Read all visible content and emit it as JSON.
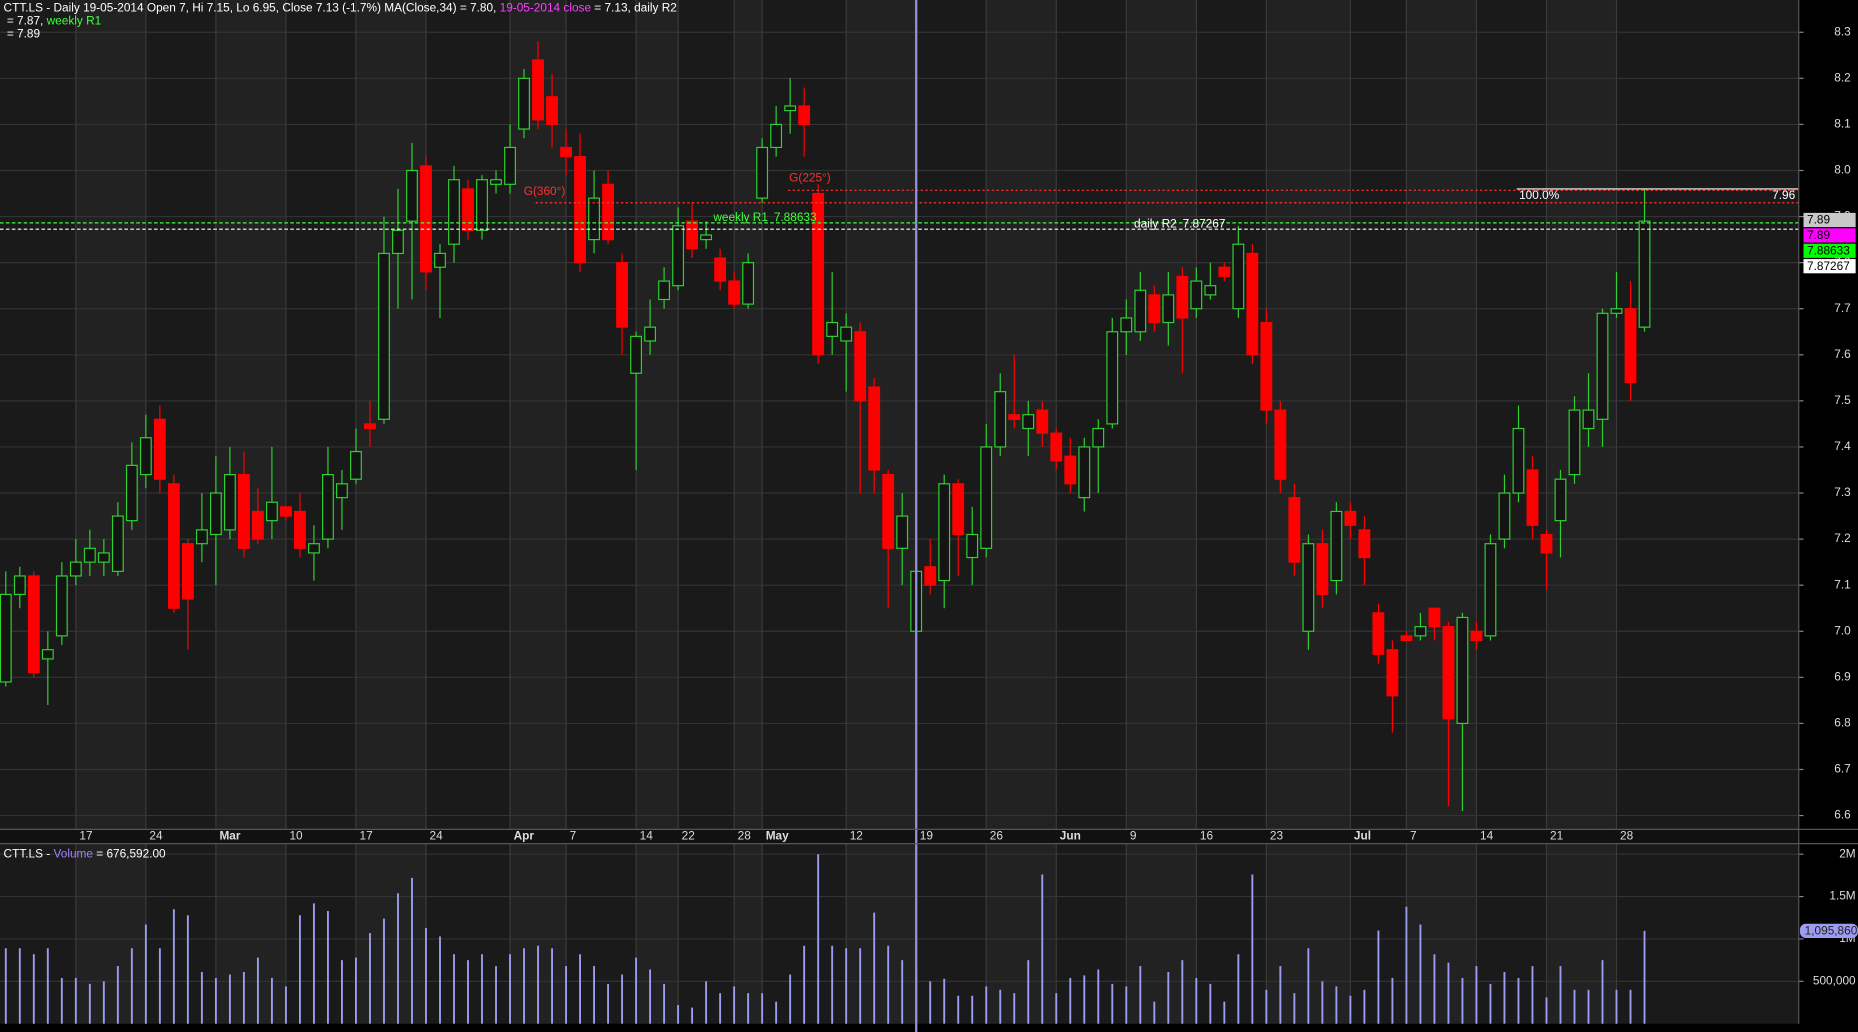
{
  "chart_data": {
    "type": "candlestick",
    "header": [
      [
        {
          "text": "CTT.LS - Daily 19-05-2014 Open 7, Hi 7.15, Lo 6.95, Close 7.13 (-1.7%) MA(Close,34) = 7.80, ",
          "color": "#ffffff"
        },
        {
          "text": "19-05-2014 close",
          "color": "#ff40ff"
        },
        {
          "text": " = 7.13, daily R2",
          "color": "#ffffff"
        }
      ],
      [
        {
          "text": " = 7.87, ",
          "color": "#ffffff"
        },
        {
          "text": "weekly R1",
          "color": "#40ff40"
        }
      ],
      [
        {
          "text": " = 7.89",
          "color": "#ffffff"
        }
      ]
    ],
    "categories": [
      null,
      null,
      null,
      null,
      null,
      "17",
      null,
      null,
      null,
      null,
      "24",
      null,
      null,
      null,
      null,
      "Mar",
      null,
      null,
      null,
      null,
      "10",
      null,
      null,
      null,
      null,
      "17",
      null,
      null,
      null,
      null,
      "24",
      null,
      null,
      null,
      null,
      null,
      "Apr",
      null,
      null,
      null,
      "7",
      null,
      null,
      null,
      null,
      "14",
      null,
      null,
      "22",
      null,
      null,
      null,
      "28",
      null,
      "May",
      null,
      null,
      null,
      null,
      null,
      "12",
      null,
      null,
      null,
      null,
      "19",
      null,
      null,
      null,
      null,
      "26",
      null,
      null,
      null,
      null,
      "Jun",
      null,
      null,
      null,
      null,
      "9",
      null,
      null,
      null,
      null,
      "16",
      null,
      null,
      null,
      null,
      "23",
      null,
      null,
      null,
      null,
      null,
      "Jul",
      null,
      null,
      null,
      "7",
      null,
      null,
      null,
      null,
      "14",
      null,
      null,
      null,
      null,
      "21",
      null,
      null,
      null,
      null,
      "28",
      null,
      null
    ],
    "open": [
      6.89,
      7.08,
      7.12,
      6.94,
      6.99,
      7.12,
      7.15,
      7.15,
      7.13,
      7.24,
      7.34,
      7.46,
      7.32,
      7.19,
      7.19,
      7.21,
      7.22,
      7.34,
      7.26,
      7.24,
      7.27,
      7.26,
      7.17,
      7.2,
      7.29,
      7.33,
      7.45,
      7.46,
      7.82,
      7.89,
      8.01,
      7.79,
      7.84,
      7.96,
      7.87,
      7.97,
      7.97,
      8.09,
      8.24,
      8.16,
      8.05,
      8.03,
      7.85,
      7.97,
      7.8,
      7.56,
      7.63,
      7.72,
      7.75,
      7.89,
      7.85,
      7.81,
      7.76,
      7.71,
      7.94,
      8.05,
      8.13,
      8.14,
      7.95,
      7.64,
      7.63,
      7.65,
      7.53,
      7.34,
      7.18,
      7,
      7.14,
      7.11,
      7.32,
      7.16,
      7.18,
      7.4,
      7.47,
      7.44,
      7.48,
      7.43,
      7.38,
      7.29,
      7.4,
      7.45,
      7.65,
      7.65,
      7.73,
      7.67,
      7.77,
      7.7,
      7.73,
      7.79,
      7.7,
      7.82,
      7.67,
      7.48,
      7.29,
      7,
      7.19,
      7.11,
      7.26,
      7.22,
      7.04,
      6.96,
      6.99,
      6.99,
      7.05,
      7.01,
      6.8,
      7,
      6.99,
      7.2,
      7.3,
      7.35,
      7.21,
      7.24,
      7.34,
      7.44,
      7.46,
      7.69,
      7.7,
      7.66
    ],
    "high": [
      7.13,
      7.14,
      7.13,
      7.0,
      7.15,
      7.2,
      7.22,
      7.2,
      7.28,
      7.41,
      7.47,
      7.49,
      7.34,
      7.2,
      7.3,
      7.38,
      7.4,
      7.39,
      7.31,
      7.4,
      7.27,
      7.3,
      7.23,
      7.4,
      7.35,
      7.44,
      7.5,
      7.9,
      7.96,
      8.06,
      8.03,
      7.84,
      8.01,
      7.98,
      7.99,
      8,
      8.1,
      8.22,
      8.28,
      8.21,
      8.09,
      8.08,
      8,
      8,
      7.82,
      7.65,
      7.72,
      7.79,
      7.92,
      7.93,
      7.89,
      7.83,
      7.78,
      7.82,
      8.07,
      8.14,
      8.2,
      8.18,
      7.97,
      7.78,
      7.69,
      7.67,
      7.55,
      7.35,
      7.3,
      7.15,
      7.2,
      7.34,
      7.33,
      7.27,
      7.45,
      7.56,
      7.6,
      7.5,
      7.5,
      7.44,
      7.42,
      7.42,
      7.46,
      7.68,
      7.72,
      7.78,
      7.75,
      7.78,
      7.79,
      7.79,
      7.8,
      7.8,
      7.88,
      7.84,
      7.7,
      7.5,
      7.32,
      7.21,
      7.22,
      7.28,
      7.28,
      7.25,
      7.06,
      6.98,
      7.0,
      7.04,
      7.05,
      7.02,
      7.04,
      7.02,
      7.21,
      7.34,
      7.49,
      7.38,
      7.22,
      7.35,
      7.51,
      7.56,
      7.7,
      7.78,
      7.76,
      7.96
    ],
    "low": [
      6.88,
      7.05,
      6.9,
      6.84,
      6.97,
      7.1,
      7.12,
      7.12,
      7.12,
      7.22,
      7.31,
      7.3,
      7.04,
      6.96,
      7.15,
      7.1,
      7.2,
      7.16,
      7.19,
      7.2,
      7.24,
      7.16,
      7.11,
      7.18,
      7.22,
      7.32,
      7.4,
      7.45,
      7.7,
      7.72,
      7.74,
      7.68,
      7.8,
      7.85,
      7.85,
      7.95,
      7.95,
      8.07,
      8.09,
      8.05,
      7.99,
      7.78,
      7.82,
      7.84,
      7.6,
      7.35,
      7.6,
      7.7,
      7.74,
      7.81,
      7.83,
      7.74,
      7.7,
      7.7,
      7.93,
      8.03,
      8.08,
      8.03,
      7.58,
      7.6,
      7.52,
      7.3,
      7.3,
      7.05,
      7.1,
      6.95,
      7.08,
      7.05,
      7.12,
      7.1,
      7.16,
      7.38,
      7.44,
      7.38,
      7.4,
      7.35,
      7.3,
      7.26,
      7.3,
      7.44,
      7.6,
      7.63,
      7.65,
      7.62,
      7.56,
      7.68,
      7.72,
      7.76,
      7.68,
      7.58,
      7.45,
      7.3,
      7.12,
      6.96,
      7.05,
      7.08,
      7.2,
      7.1,
      6.93,
      6.78,
      6.98,
      6.98,
      6.98,
      6.62,
      6.61,
      6.96,
      6.98,
      7.18,
      7.28,
      7.2,
      7.09,
      7.16,
      7.32,
      7.4,
      7.4,
      7.68,
      7.5,
      7.65
    ],
    "close": [
      7.08,
      7.12,
      6.91,
      6.96,
      7.12,
      7.15,
      7.18,
      7.17,
      7.25,
      7.36,
      7.42,
      7.33,
      7.05,
      7.07,
      7.22,
      7.3,
      7.34,
      7.18,
      7.2,
      7.28,
      7.25,
      7.18,
      7.19,
      7.34,
      7.32,
      7.39,
      7.44,
      7.82,
      7.87,
      8.0,
      7.78,
      7.82,
      7.98,
      7.87,
      7.98,
      7.98,
      8.05,
      8.2,
      8.11,
      8.1,
      8.03,
      7.8,
      7.94,
      7.85,
      7.66,
      7.64,
      7.66,
      7.76,
      7.88,
      7.83,
      7.86,
      7.76,
      7.71,
      7.8,
      8.05,
      8.1,
      8.14,
      8.1,
      7.6,
      7.67,
      7.66,
      7.5,
      7.35,
      7.18,
      7.25,
      7.13,
      7.1,
      7.32,
      7.21,
      7.21,
      7.4,
      7.52,
      7.46,
      7.47,
      7.43,
      7.37,
      7.32,
      7.4,
      7.44,
      7.65,
      7.68,
      7.74,
      7.67,
      7.73,
      7.68,
      7.76,
      7.75,
      7.77,
      7.84,
      7.6,
      7.48,
      7.33,
      7.15,
      7.19,
      7.08,
      7.26,
      7.23,
      7.16,
      6.95,
      6.86,
      6.98,
      7.01,
      7.01,
      6.81,
      7.03,
      6.98,
      7.19,
      7.3,
      7.44,
      7.23,
      7.17,
      7.33,
      7.48,
      7.48,
      7.69,
      7.7,
      7.54,
      7.89
    ],
    "up_color": "#2fd12f",
    "down_color": "#ff0000",
    "ylim": [
      6.57,
      8.37
    ],
    "yticks": [
      6.6,
      6.7,
      6.8,
      6.9,
      {
        "value": 7,
        "label": "7.0"
      },
      7.1,
      7.2,
      7.3,
      7.4,
      7.5,
      7.6,
      7.7,
      7.8,
      7.9,
      {
        "value": 8,
        "label": "8.0"
      },
      8.1,
      8.2,
      8.3
    ],
    "grid": true,
    "levels": [
      {
        "name": "weekly R1",
        "value": 7.88633,
        "color": "#40ff40",
        "style": "dashed"
      },
      {
        "name": "daily R2",
        "value": 7.87267,
        "color": "#ffffff",
        "style": "dashed"
      },
      {
        "name": "G(360°)",
        "value": 7.93,
        "color": "#ff3030",
        "style": "dotted"
      },
      {
        "name": "G(225°)",
        "value": 7.957,
        "color": "#ff3030",
        "style": "dotted"
      },
      {
        "name": "100.0%",
        "value": 7.96,
        "color": "#ffffff",
        "style": "solid"
      }
    ],
    "price_markers": [
      {
        "value": 7.89,
        "color": "#c8c8c8"
      },
      {
        "value": 7.89,
        "color": "#ff00ff"
      },
      {
        "value": 7.88633,
        "color": "#00ff00"
      },
      {
        "value": 7.87267,
        "color": "#ffffff"
      }
    ],
    "volume": {
      "header": [
        {
          "text": "CTT.LS - ",
          "color": "#ffffff"
        },
        {
          "text": "Volume",
          "color": "#a080ff"
        },
        {
          "text": " = 676,592.00",
          "color": "#ffffff"
        }
      ],
      "values": [
        890000,
        890000,
        820000,
        890000,
        540000,
        540000,
        470000,
        500000,
        680000,
        890000,
        1170000,
        890000,
        1350000,
        1280000,
        610000,
        540000,
        580000,
        610000,
        780000,
        540000,
        440000,
        1280000,
        1420000,
        1330000,
        750000,
        780000,
        1070000,
        1240000,
        1540000,
        1720000,
        1130000,
        1030000,
        820000,
        750000,
        820000,
        680000,
        820000,
        890000,
        920000,
        890000,
        680000,
        820000,
        680000,
        470000,
        580000,
        780000,
        640000,
        470000,
        220000,
        190000,
        500000,
        360000,
        440000,
        360000,
        360000,
        260000,
        580000,
        920000,
        2000000,
        920000,
        890000,
        890000,
        1310000,
        920000,
        750000,
        676592,
        500000,
        530000,
        330000,
        330000,
        440000,
        400000,
        360000,
        750000,
        1760000,
        360000,
        540000,
        570000,
        640000,
        470000,
        440000,
        680000,
        260000,
        610000,
        750000,
        540000,
        470000,
        260000,
        820000,
        1760000,
        400000,
        680000,
        360000,
        890000,
        500000,
        440000,
        330000,
        400000,
        1100000,
        540000,
        1380000,
        1170000,
        820000,
        720000,
        540000,
        680000,
        470000,
        610000,
        540000,
        680000,
        310000,
        680000,
        400000,
        400000,
        750000,
        400000,
        400000,
        1095860
      ],
      "color": "#9c9cf0",
      "ylim": [
        0,
        2125000
      ],
      "yticks": [
        {
          "value": 500000,
          "label": "500,000"
        },
        {
          "value": 1000000,
          "label": "1M"
        },
        {
          "value": 1500000,
          "label": "1.5M"
        },
        {
          "value": 2000000,
          "label": "2M"
        }
      ],
      "marker": {
        "value": 1095860,
        "label": "1,095,860"
      }
    }
  }
}
